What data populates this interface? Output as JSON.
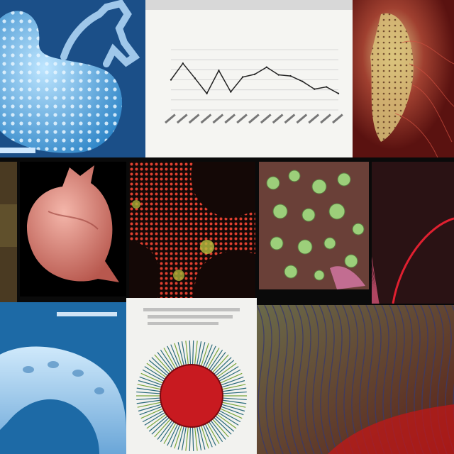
{
  "tiles": [
    {
      "id": "cell-blue",
      "depicts": "blue-cell-illustration"
    },
    {
      "id": "chart",
      "depicts": "line-chart-screenshot"
    },
    {
      "id": "tissue-red",
      "depicts": "red-tissue-micrograph"
    },
    {
      "id": "stomach",
      "depicts": "pink-organ-illustration"
    },
    {
      "id": "red-network",
      "depicts": "red-cell-network"
    },
    {
      "id": "green-cells",
      "depicts": "green-cells-micrograph"
    },
    {
      "id": "fan",
      "depicts": "fan-fibers-illustration"
    },
    {
      "id": "tube-blue",
      "depicts": "blue-tube-illustration"
    },
    {
      "id": "sphere",
      "depicts": "spiky-sphere-illustration"
    },
    {
      "id": "vessels",
      "depicts": "vessel-network-micrograph"
    }
  ],
  "chart_data": {
    "type": "line",
    "x": [
      1,
      2,
      3,
      4,
      5,
      6,
      7,
      8,
      9,
      10,
      11,
      12,
      13,
      14,
      15
    ],
    "values": [
      55,
      85,
      58,
      30,
      72,
      33,
      60,
      65,
      78,
      64,
      62,
      52,
      38,
      42,
      30
    ],
    "ylim": [
      0,
      110
    ],
    "grid": true,
    "line_color": "#222222"
  },
  "colors": {
    "blue": "#1c5a96",
    "red": "#c0201a",
    "green": "#8cc26a",
    "pink": "#e89a90"
  }
}
